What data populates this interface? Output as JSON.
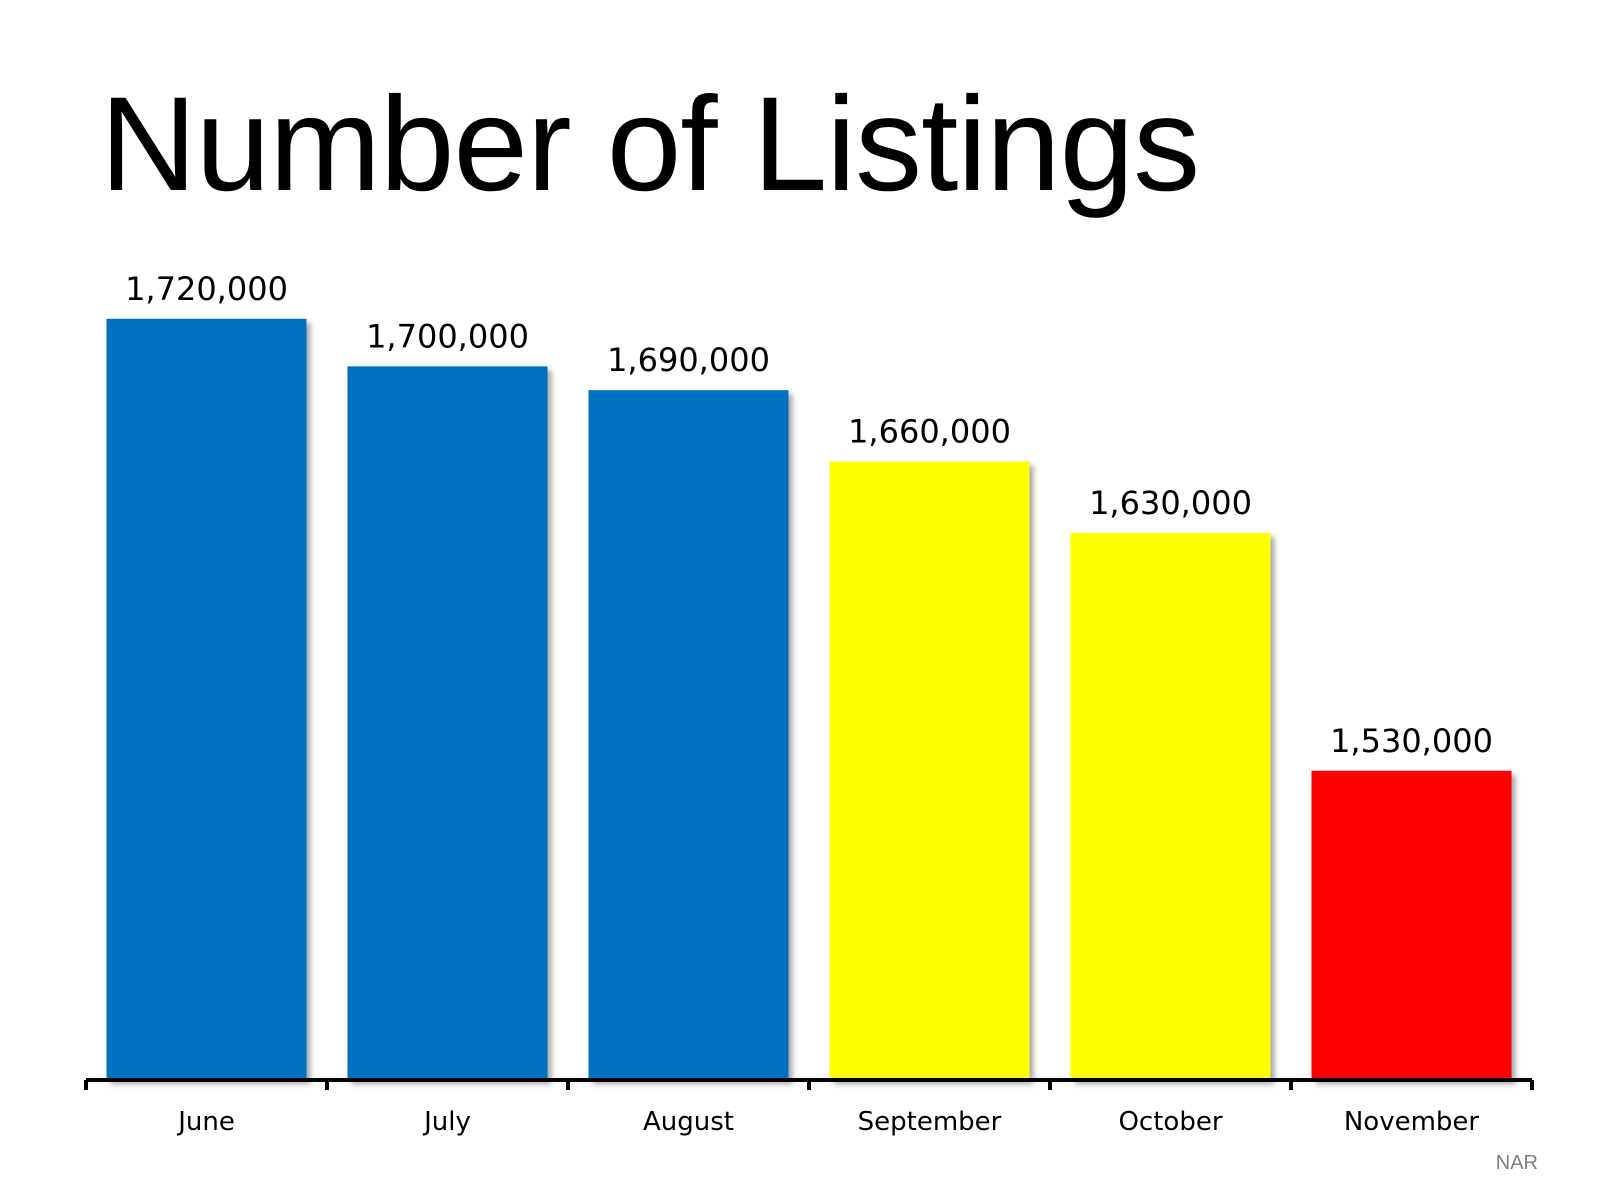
{
  "chart_data": {
    "type": "bar",
    "title": "Number of Listings",
    "categories": [
      "June",
      "July",
      "August",
      "September",
      "October",
      "November"
    ],
    "values": [
      1720000,
      1700000,
      1690000,
      1660000,
      1630000,
      1530000
    ],
    "value_labels": [
      "1,720,000",
      "1,700,000",
      "1,690,000",
      "1,660,000",
      "1,630,000",
      "1,530,000"
    ],
    "bar_colors": [
      "#0070C0",
      "#0070C0",
      "#0070C0",
      "#FFFF00",
      "#FFFF00",
      "#FF0000"
    ],
    "xlabel": "",
    "ylabel": "",
    "ylim": [
      1400000,
      1730000
    ],
    "grid": false,
    "legend": "none"
  },
  "source": "NAR"
}
